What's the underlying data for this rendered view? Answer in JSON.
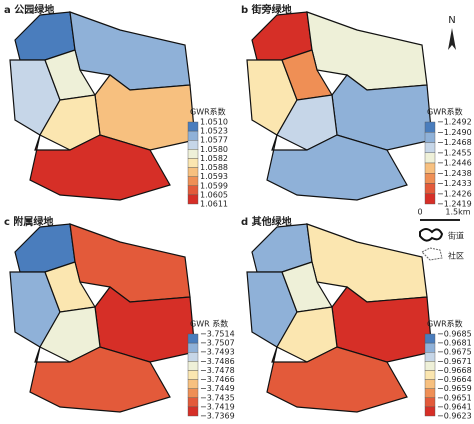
{
  "panels": [
    {
      "title": "a 公园绿地",
      "legend_title": "GWR系数",
      "legend_labels": [
        "1.0510",
        "1.0523",
        "1.0577",
        "1.0580",
        "1.0582",
        "1.0588",
        "1.0593",
        "1.0599",
        "1.0605",
        "1.0611"
      ]
    },
    {
      "title": "b 街旁绿地",
      "legend_title": "GWR系数",
      "legend_labels": [
        "−1.2492",
        "−1.2490",
        "−1.2468",
        "−1.2455",
        "−1.2446",
        "−1.2438",
        "−1.2433",
        "−1.2426",
        "−1.2419"
      ]
    },
    {
      "title": "c 附属绿地",
      "legend_title": "GWR 系数",
      "legend_labels": [
        "−3.7514",
        "−3.7507",
        "−3.7493",
        "−3.7486",
        "−3.7478",
        "−3.7466",
        "−3.7449",
        "−3.7435",
        "−3.7419",
        "−3.7369"
      ]
    },
    {
      "title": "d 其他绿地",
      "legend_title": "GWR系数",
      "legend_labels": [
        "−0.9685",
        "−0.9681",
        "−0.9675",
        "−0.9671",
        "−0.9668",
        "−0.9664",
        "−0.9659",
        "−0.9651",
        "−0.9641",
        "−0.9623"
      ]
    }
  ],
  "north": "N",
  "scale": {
    "start": "0",
    "end": "1.5km"
  },
  "key": {
    "street": "街道",
    "community": "社区"
  }
}
